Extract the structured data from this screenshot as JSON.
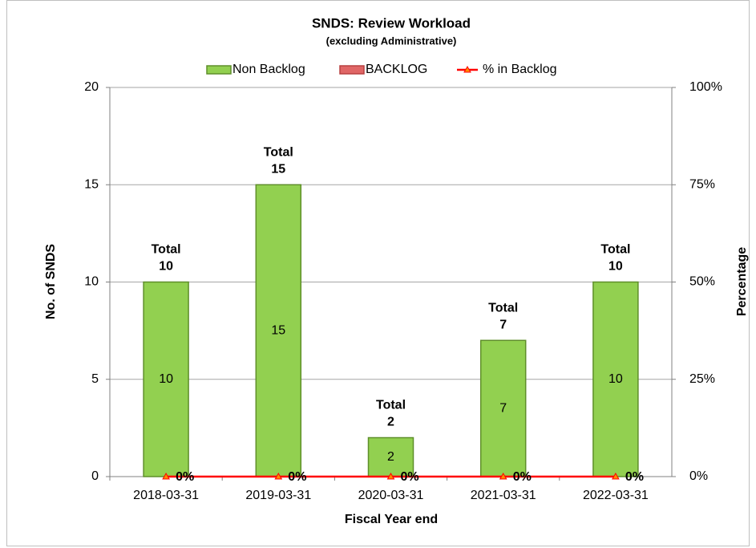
{
  "chart_data": {
    "type": "bar",
    "title": "SNDS: Review Workload",
    "subtitle": "(excluding Administrative)",
    "x_label": "Fiscal Year end",
    "y_label": "No. of SNDS",
    "y2_label": "Percentage",
    "categories": [
      "2018-03-31",
      "2019-03-31",
      "2020-03-31",
      "2021-03-31",
      "2022-03-31"
    ],
    "stacked": true,
    "series": [
      {
        "name": "Non Backlog",
        "color": "#92d050",
        "values": [
          10,
          15,
          2,
          7,
          10
        ]
      },
      {
        "name": "BACKLOG",
        "color": "#e06666",
        "values": [
          0,
          0,
          0,
          0,
          0
        ]
      },
      {
        "name": "% in Backlog",
        "color": "#ff0000",
        "type": "line",
        "axis": "y2",
        "values": [
          0,
          0,
          0,
          0,
          0
        ],
        "value_labels": [
          "0%",
          "0%",
          "0%",
          "0%",
          "0%"
        ]
      }
    ],
    "total_prefix": "Total",
    "totals": [
      10,
      15,
      2,
      7,
      10
    ],
    "ylim": [
      0,
      20
    ],
    "yticks": [
      0,
      5,
      10,
      15,
      20
    ],
    "y2lim": [
      0,
      100
    ],
    "y2ticks": [
      {
        "value": 0,
        "label": "0%"
      },
      {
        "value": 25,
        "label": "25%"
      },
      {
        "value": 50,
        "label": "50%"
      },
      {
        "value": 75,
        "label": "75%"
      },
      {
        "value": 100,
        "label": "100%"
      }
    ],
    "grid": true,
    "legend": "top"
  }
}
